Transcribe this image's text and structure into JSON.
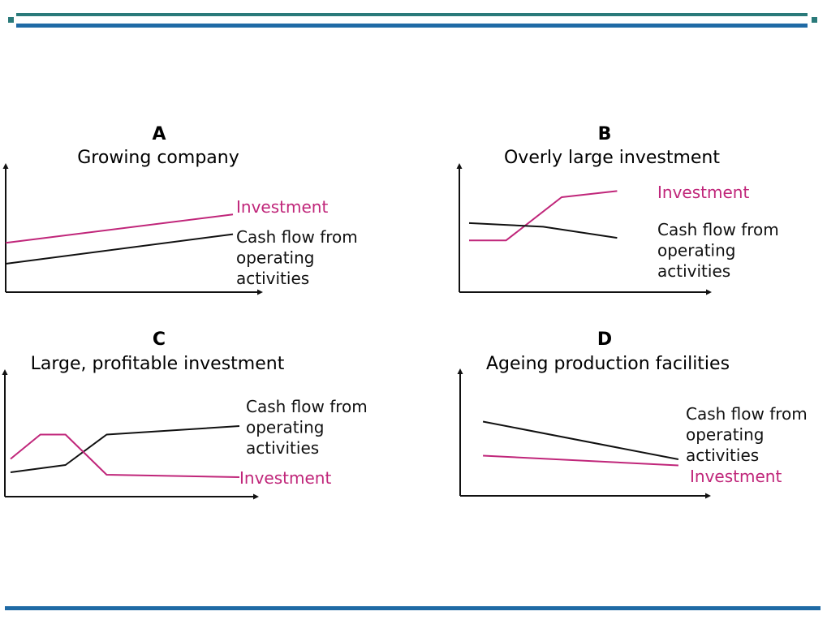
{
  "colors": {
    "accent_teal": "#2a7a7a",
    "accent_blue": "#1f6aa5",
    "investment": "#c0267a",
    "cash_flow": "#111111",
    "axis": "#111111"
  },
  "chart_data": [
    {
      "type": "line",
      "letter": "A",
      "title": "Growing company",
      "xlabel": "",
      "ylabel": "",
      "grid": false,
      "xlim": [
        0,
        10
      ],
      "ylim": [
        0,
        10
      ],
      "series": [
        {
          "name": "Investment",
          "color": "investment",
          "x": [
            0,
            10
          ],
          "y": [
            4.0,
            6.3
          ]
        },
        {
          "name": "Cash flow from operating activities",
          "color": "cash_flow",
          "x": [
            0,
            10
          ],
          "y": [
            2.3,
            4.7
          ]
        }
      ]
    },
    {
      "type": "line",
      "letter": "B",
      "title": "Overly large investment",
      "xlabel": "",
      "ylabel": "",
      "grid": false,
      "xlim": [
        0,
        10
      ],
      "ylim": [
        0,
        10
      ],
      "series": [
        {
          "name": "Investment",
          "color": "investment",
          "x": [
            0,
            2,
            5,
            8
          ],
          "y": [
            4.2,
            4.2,
            7.7,
            8.2
          ]
        },
        {
          "name": "Cash flow from operating activities",
          "color": "cash_flow",
          "x": [
            0,
            4,
            8
          ],
          "y": [
            5.6,
            5.3,
            4.4
          ]
        }
      ]
    },
    {
      "type": "line",
      "letter": "C",
      "title": "Large, profitable investment",
      "xlabel": "",
      "ylabel": "",
      "grid": false,
      "xlim": [
        0,
        10
      ],
      "ylim": [
        0,
        10
      ],
      "series": [
        {
          "name": "Cash flow from operating activities",
          "color": "cash_flow",
          "x": [
            0,
            2.4,
            4.2,
            10
          ],
          "y": [
            2.0,
            2.6,
            5.1,
            5.8
          ]
        },
        {
          "name": "Investment",
          "color": "investment",
          "x": [
            0,
            1.3,
            2.4,
            4.2,
            10
          ],
          "y": [
            3.1,
            5.1,
            5.1,
            1.8,
            1.6
          ]
        }
      ]
    },
    {
      "type": "line",
      "letter": "D",
      "title": "Ageing production facilities",
      "xlabel": "",
      "ylabel": "",
      "grid": false,
      "xlim": [
        0,
        10
      ],
      "ylim": [
        0,
        10
      ],
      "series": [
        {
          "name": "Cash flow from operating activities",
          "color": "cash_flow",
          "x": [
            1,
            9
          ],
          "y": [
            6.1,
            3.0
          ]
        },
        {
          "name": "Investment",
          "color": "investment",
          "x": [
            1,
            9
          ],
          "y": [
            3.3,
            2.5
          ]
        }
      ]
    }
  ]
}
